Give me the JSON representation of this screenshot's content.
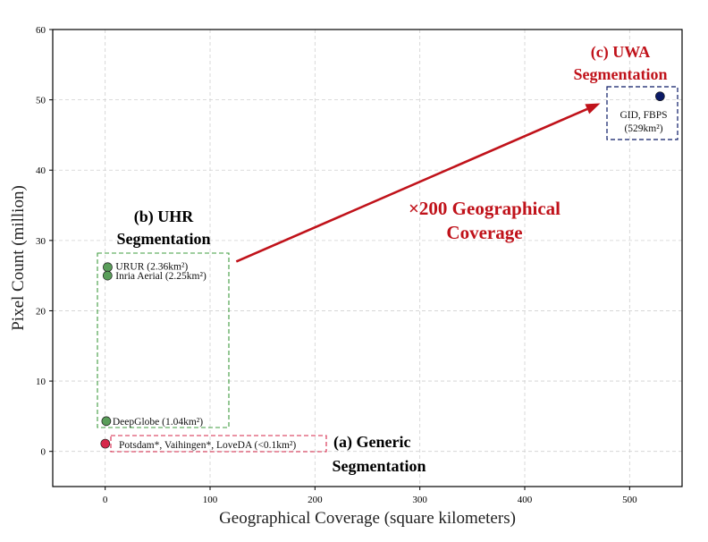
{
  "chart_data": {
    "type": "scatter",
    "xlabel": "Geographical Coverage (square kilometers)",
    "ylabel": "Pixel Count (million)",
    "xlim": [
      -50,
      550
    ],
    "ylim": [
      -5,
      60
    ],
    "xticks": [
      0,
      100,
      200,
      300,
      400,
      500
    ],
    "yticks": [
      0,
      10,
      20,
      30,
      40,
      50,
      60
    ],
    "grid": true,
    "points": [
      {
        "label": "URUR (2.36km²)",
        "x": 2.36,
        "y": 26.2,
        "color": "#5a9e5a"
      },
      {
        "label": "Inria Aerial (2.25km²)",
        "x": 2.25,
        "y": 25.0,
        "color": "#5a9e5a"
      },
      {
        "label": "DeepGlobe (1.04km²)",
        "x": 1.04,
        "y": 4.3,
        "color": "#5a9e5a"
      },
      {
        "label": "Potsdam*, Vaihingen*, LoveDA (<0.1km²)",
        "x": 0.1,
        "y": 1.1,
        "color": "#d6274a"
      },
      {
        "label": "GID, FBPS",
        "x": 529,
        "y": 50.5,
        "color": "#0b1a66"
      }
    ],
    "extra_labels": {
      "uwa_area": "(529km²)"
    },
    "groups": [
      {
        "id": "generic",
        "title_line1": "(a) Generic",
        "title_line2": "Segmentation",
        "color": "#000000",
        "box_color": "#d6274a"
      },
      {
        "id": "uhr",
        "title_line1": "(b) UHR",
        "title_line2": "Segmentation",
        "color": "#000000",
        "box_color": "#3f9c3f"
      },
      {
        "id": "uwa",
        "title_line1": "(c) UWA",
        "title_line2": "Segmentation",
        "color": "#c0121a",
        "box_color": "#0b1a66"
      }
    ],
    "arrow": {
      "text_line1": "×200 Geographical",
      "text_line2": "Coverage",
      "color": "#c0121a",
      "from": [
        125,
        27
      ],
      "to": [
        472,
        49.5
      ]
    }
  }
}
